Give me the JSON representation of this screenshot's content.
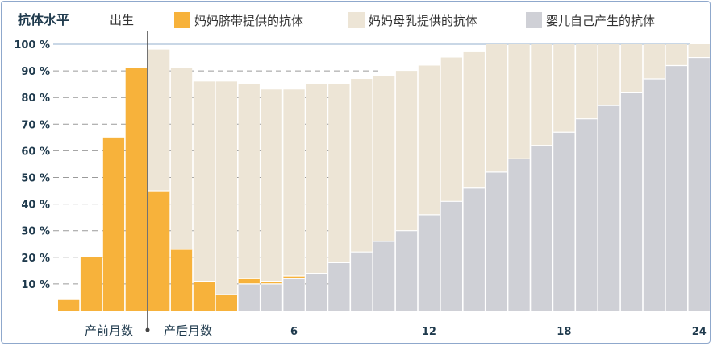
{
  "chart_data": {
    "type": "bar",
    "title": "抗体水平",
    "birth_label": "出生",
    "ylim": [
      0,
      100
    ],
    "yticks": [
      "10 %",
      "20 %",
      "30 %",
      "40 %",
      "50 %",
      "60 %",
      "70 %",
      "80 %",
      "90 %",
      "100 %"
    ],
    "xtick_labels": [
      {
        "label": "产前月数",
        "month": -1
      },
      {
        "label": "产后月数",
        "month": 1.5
      },
      {
        "label": "6",
        "month": 6
      },
      {
        "label": "12",
        "month": 12
      },
      {
        "label": "18",
        "month": 18
      },
      {
        "label": "24",
        "month": 24
      }
    ],
    "legend": [
      {
        "name": "妈妈脐带提供的抗体",
        "color": "#f7b23b"
      },
      {
        "name": "妈妈母乳提供的抗体",
        "color": "#ede5d6"
      },
      {
        "name": "婴儿自己产生的抗体",
        "color": "#cfd0d6"
      }
    ],
    "prenatal": {
      "name": "妈妈脐带提供的抗体",
      "values": [
        4,
        20,
        65,
        91
      ]
    },
    "postnatal": {
      "months": [
        0,
        1,
        2,
        3,
        4,
        5,
        6,
        7,
        8,
        9,
        10,
        11,
        12,
        13,
        14,
        15,
        16,
        17,
        18,
        19,
        20,
        21,
        22,
        23,
        24
      ],
      "series": [
        {
          "name": "婴儿自己产生的抗体",
          "values": [
            0,
            0,
            0,
            0,
            10,
            10,
            12,
            14,
            18,
            22,
            26,
            30,
            36,
            41,
            46,
            52,
            57,
            62,
            67,
            72,
            77,
            82,
            87,
            92,
            95
          ]
        },
        {
          "name": "妈妈脐带提供的抗体",
          "values": [
            45,
            23,
            11,
            6,
            2,
            1,
            1,
            0,
            0,
            0,
            0,
            0,
            0,
            0,
            0,
            0,
            0,
            0,
            0,
            0,
            0,
            0,
            0,
            0,
            0
          ]
        },
        {
          "name": "妈妈母乳提供的抗体",
          "values": [
            53,
            68,
            75,
            80,
            73,
            72,
            70,
            71,
            67,
            65,
            62,
            60,
            56,
            54,
            51,
            48,
            43,
            38,
            33,
            28,
            23,
            18,
            13,
            8,
            5
          ]
        }
      ]
    }
  }
}
